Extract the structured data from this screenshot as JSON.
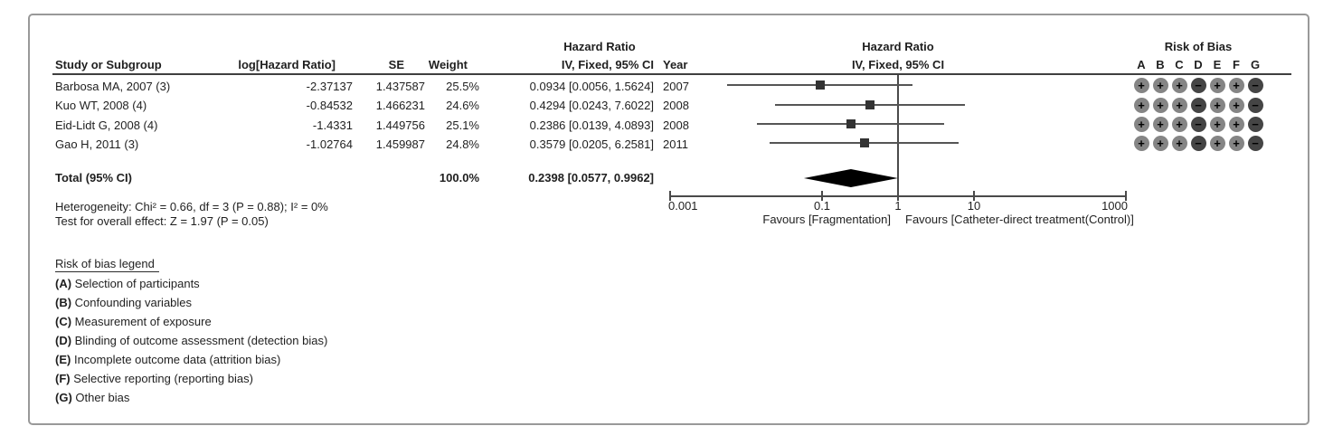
{
  "colors": {
    "text": "#1f1f1f",
    "rule": "#3f3f3f",
    "axis": "#4a4a4a",
    "ci_line": "#555555",
    "square": "#333333",
    "diamond": "#000000",
    "frame_border": "#999999",
    "rob_plus": "#858585",
    "rob_minus": "#454545",
    "rob_symbol": "#000000"
  },
  "table_header": {
    "study": "Study or Subgroup",
    "log_hr": "log[Hazard Ratio]",
    "se": "SE",
    "weight": "Weight",
    "effect_title": "Hazard Ratio",
    "effect_sub": "IV, Fixed, 95% CI",
    "year": "Year"
  },
  "plot_header": {
    "title": "Hazard Ratio",
    "sub": "IV, Fixed, 95% CI"
  },
  "rob_header": {
    "title": "Risk of Bias",
    "letters": [
      "A",
      "B",
      "C",
      "D",
      "E",
      "F",
      "G"
    ]
  },
  "chart_data": {
    "type": "forest",
    "effect_measure": "Hazard Ratio",
    "model": "IV, Fixed, 95% CI",
    "x_axis": {
      "scale": "log",
      "min": 0.001,
      "max": 1000,
      "ticks": [
        0.001,
        0.1,
        1,
        10,
        1000
      ],
      "tick_labels": [
        "0.001",
        "0.1",
        "1",
        "10",
        "1000"
      ],
      "left_label": "Favours [Fragmentation]",
      "right_label": "Favours [Catheter-direct treatment(Control)]"
    },
    "studies": [
      {
        "name": "Barbosa MA, 2007 (3)",
        "log_hr": "-2.37137",
        "se": "1.437587",
        "weight": "25.5%",
        "weight_pct": 25.5,
        "hr": 0.0934,
        "ci_low": 0.0056,
        "ci_high": 1.5624,
        "ci_text": "0.0934 [0.0056, 1.5624]",
        "year": "2007",
        "risk_of_bias": [
          "+",
          "+",
          "+",
          "-",
          "+",
          "+",
          "-"
        ]
      },
      {
        "name": "Kuo WT, 2008 (4)",
        "log_hr": "-0.84532",
        "se": "1.466231",
        "weight": "24.6%",
        "weight_pct": 24.6,
        "hr": 0.4294,
        "ci_low": 0.0243,
        "ci_high": 7.6022,
        "ci_text": "0.4294 [0.0243, 7.6022]",
        "year": "2008",
        "risk_of_bias": [
          "+",
          "+",
          "+",
          "-",
          "+",
          "+",
          "-"
        ]
      },
      {
        "name": "Eid-Lidt G, 2008 (4)",
        "log_hr": "-1.4331",
        "se": "1.449756",
        "weight": "25.1%",
        "weight_pct": 25.1,
        "hr": 0.2386,
        "ci_low": 0.0139,
        "ci_high": 4.0893,
        "ci_text": "0.2386 [0.0139, 4.0893]",
        "year": "2008",
        "risk_of_bias": [
          "+",
          "+",
          "+",
          "-",
          "+",
          "+",
          "-"
        ]
      },
      {
        "name": "Gao H, 2011 (3)",
        "log_hr": "-1.02764",
        "se": "1.459987",
        "weight": "24.8%",
        "weight_pct": 24.8,
        "hr": 0.3579,
        "ci_low": 0.0205,
        "ci_high": 6.2581,
        "ci_text": "0.3579 [0.0205, 6.2581]",
        "year": "2011",
        "risk_of_bias": [
          "+",
          "+",
          "+",
          "-",
          "+",
          "+",
          "-"
        ]
      }
    ],
    "total": {
      "label": "Total (95% CI)",
      "weight": "100.0%",
      "hr": 0.2398,
      "ci_low": 0.0577,
      "ci_high": 0.9962,
      "ci_text": "0.2398 [0.0577, 0.9962]"
    },
    "heterogeneity": "Heterogeneity: Chi² = 0.66, df = 3 (P = 0.88); I² = 0%",
    "overall_effect": "Test for overall effect: Z = 1.97 (P = 0.05)"
  },
  "legend": {
    "title": "Risk of bias legend",
    "items": [
      {
        "key": "(A)",
        "text": " Selection of participants"
      },
      {
        "key": "(B)",
        "text": " Confounding variables"
      },
      {
        "key": "(C)",
        "text": " Measurement of exposure"
      },
      {
        "key": "(D)",
        "text": " Blinding of outcome assessment (detection bias)"
      },
      {
        "key": "(E)",
        "text": " Incomplete outcome data (attrition bias)"
      },
      {
        "key": "(F)",
        "text": " Selective reporting (reporting bias)"
      },
      {
        "key": "(G)",
        "text": " Other bias"
      }
    ]
  }
}
